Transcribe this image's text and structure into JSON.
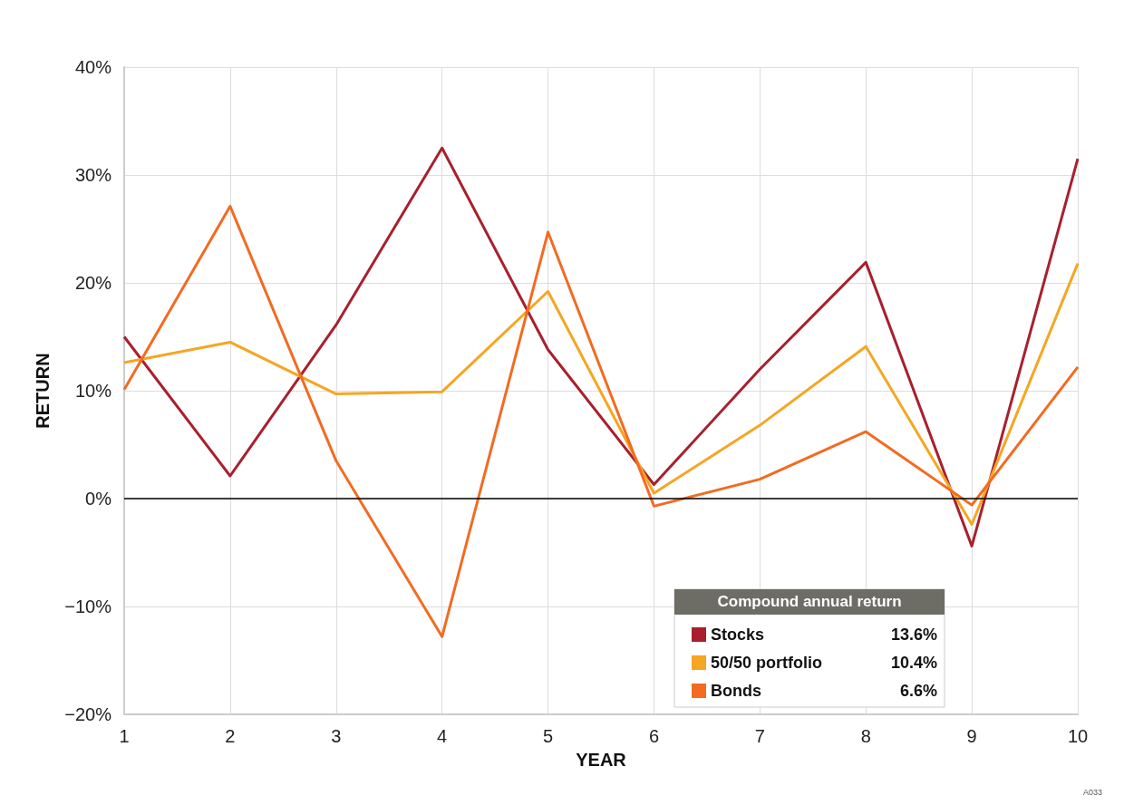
{
  "chart_data": {
    "type": "line",
    "xlabel": "YEAR",
    "ylabel": "RETURN",
    "legend_title": "Compound annual return",
    "x": [
      1,
      2,
      3,
      4,
      5,
      6,
      7,
      8,
      9,
      10
    ],
    "series": [
      {
        "name": "Stocks",
        "color": "#a8202e",
        "values": [
          15.0,
          2.1,
          16.1,
          32.5,
          13.8,
          1.3,
          12.0,
          21.9,
          -4.4,
          31.5
        ]
      },
      {
        "name": "50/50 portfolio",
        "color": "#f5a623",
        "values": [
          12.6,
          14.5,
          9.7,
          9.9,
          19.2,
          0.5,
          6.8,
          14.1,
          -2.4,
          21.8
        ]
      },
      {
        "name": "Bonds",
        "color": "#f26b21",
        "values": [
          10.1,
          27.1,
          3.5,
          -12.8,
          24.7,
          -0.7,
          1.8,
          6.2,
          -0.6,
          12.2
        ]
      }
    ],
    "annotations": [
      "13.6%",
      "10.4%",
      "6.6%",
      "A033"
    ],
    "xlim": [
      1,
      10
    ],
    "xticks": [
      1,
      2,
      3,
      4,
      5,
      6,
      7,
      8,
      9,
      10
    ],
    "ylim": [
      -20,
      40
    ],
    "yticks": [
      {
        "value": -20,
        "label": "−20%"
      },
      {
        "value": -10,
        "label": "−10%"
      },
      {
        "value": 0,
        "label": "0%"
      },
      {
        "value": 10,
        "label": "10%"
      },
      {
        "value": 20,
        "label": "20%"
      },
      {
        "value": 30,
        "label": "30%"
      },
      {
        "value": 40,
        "label": "40%"
      }
    ],
    "ref_lines": [
      {
        "axis": "y",
        "value": 0,
        "color": "#000000"
      }
    ],
    "grid": true,
    "legend": "bottom right",
    "marker": "none",
    "line_style": "solid"
  }
}
